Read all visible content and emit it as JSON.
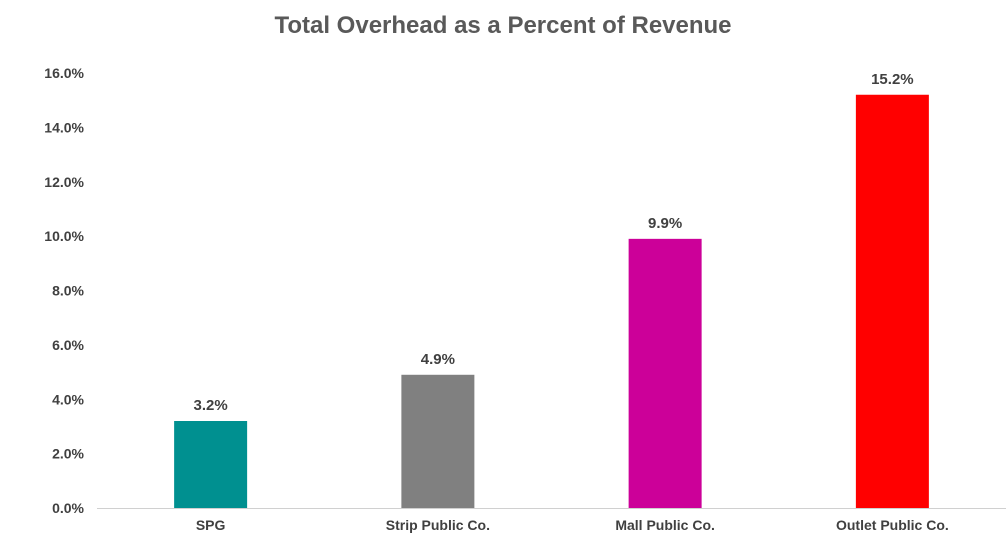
{
  "chart_data": {
    "type": "bar",
    "title": "Total Overhead as a Percent of Revenue",
    "xlabel": "",
    "ylabel": "",
    "categories": [
      "SPG",
      "Strip Public Co.",
      "Mall Public Co.",
      "Outlet Public Co."
    ],
    "values": [
      3.2,
      4.9,
      9.9,
      15.2
    ],
    "data_labels": [
      "3.2%",
      "4.9%",
      "9.9%",
      "15.2%"
    ],
    "colors": [
      "#009090",
      "#808080",
      "#CC0099",
      "#FF0000"
    ],
    "ylim": [
      0,
      16
    ],
    "yticks": [
      0,
      2,
      4,
      6,
      8,
      10,
      12,
      14,
      16
    ],
    "ytick_labels": [
      "0.0%",
      "2.0%",
      "4.0%",
      "6.0%",
      "8.0%",
      "10.0%",
      "12.0%",
      "14.0%",
      "16.0%"
    ],
    "grid": false,
    "legend": "none"
  }
}
